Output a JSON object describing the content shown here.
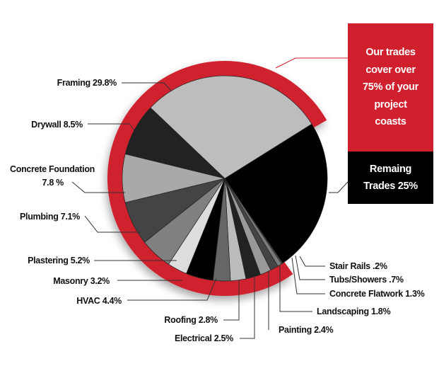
{
  "chart_data": {
    "type": "pie",
    "title": "",
    "callout": {
      "covered": "Our trades cover over 75% of your project coasts",
      "remaining": "Remaing Trades 25%"
    },
    "slices": [
      {
        "label": "Remaining Trades",
        "display": "Remaing Trades 25%",
        "value": 25.0,
        "color": "#000000"
      },
      {
        "label": "Stair Rails",
        "display": "Stair Rails  .2%",
        "value": 0.2,
        "color": "#555555"
      },
      {
        "label": "Tubs/Showers",
        "display": "Tubs/Showers .7%",
        "value": 0.7,
        "color": "#7a7a7a"
      },
      {
        "label": "Concrete Flatwork",
        "display": "Concrete Flatwork 1.3%",
        "value": 1.3,
        "color": "#444444"
      },
      {
        "label": "Landscaping",
        "display": "Landscaping 1.8%",
        "value": 1.8,
        "color": "#999999"
      },
      {
        "label": "Painting",
        "display": "Painting 2.4%",
        "value": 2.4,
        "color": "#222222"
      },
      {
        "label": "Electrical",
        "display": "Electrical  2.5%",
        "value": 2.5,
        "color": "#bbbbbb"
      },
      {
        "label": "Roofing",
        "display": "Roofing 2.8%",
        "value": 2.8,
        "color": "#666666"
      },
      {
        "label": "HVAC",
        "display": "HVAC 4.4%",
        "value": 4.4,
        "color": "#000000"
      },
      {
        "label": "Masonry",
        "display": "Masonry 3.2%",
        "value": 3.2,
        "color": "#dddddd"
      },
      {
        "label": "Plastering",
        "display": "Plastering 5.2%",
        "value": 5.2,
        "color": "#808080"
      },
      {
        "label": "Plumbing",
        "display": "Plumbing 7.1%",
        "value": 7.1,
        "color": "#444444"
      },
      {
        "label": "Concrete Foundation",
        "display": "Concrete Foundation 7.8 %",
        "value": 7.8,
        "color": "#a9a9a9"
      },
      {
        "label": "Drywall",
        "display": "Drywall 8.5%",
        "value": 8.5,
        "color": "#222222"
      },
      {
        "label": "Framing",
        "display": "Framing 29.8%",
        "value": 29.8,
        "color": "#bdbdbd"
      }
    ],
    "accent_color": "#d0202e"
  },
  "labels": {
    "framing": "Framing 29.8%",
    "drywall": "Drywall 8.5%",
    "concrete_foundation_1": "Concrete Foundation",
    "concrete_foundation_2": "7.8 %",
    "plumbing": "Plumbing 7.1%",
    "plastering": "Plastering 5.2%",
    "masonry": "Masonry 3.2%",
    "hvac": "HVAC 4.4%",
    "roofing": "Roofing 2.8%",
    "electrical": "Electrical  2.5%",
    "painting": "Painting 2.4%",
    "landscaping": "Landscaping 1.8%",
    "concrete_flatwork": "Concrete Flatwork 1.3%",
    "tubs_showers": "Tubs/Showers .7%",
    "stair_rails": "Stair Rails  .2%"
  },
  "callout_boxes": {
    "covered_text": "Our trades cover over 75% of your project coasts",
    "remaining_text": "Remaing Trades 25%"
  }
}
